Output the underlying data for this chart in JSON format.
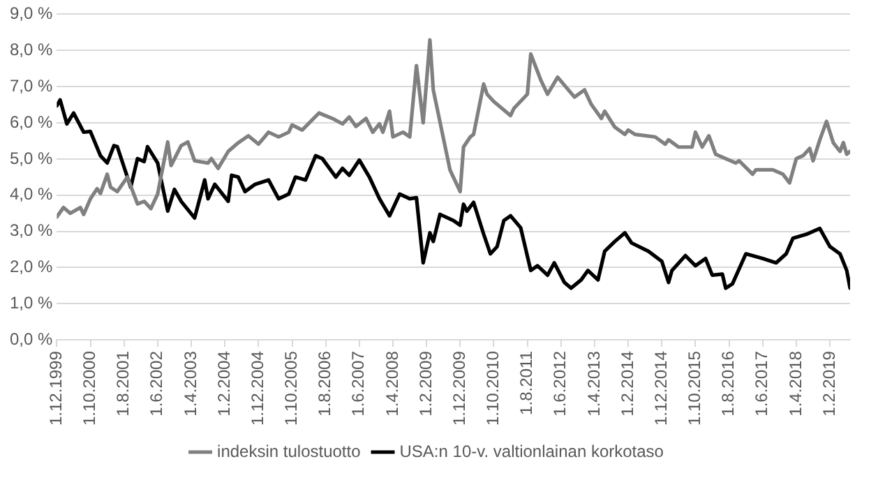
{
  "chart_data": {
    "type": "line",
    "xlim": [
      "1999-12",
      "2019-08"
    ],
    "xticks": [
      {
        "value": "1999-12",
        "label": "1.12.1999"
      },
      {
        "value": "2000-10",
        "label": "1.10.2000"
      },
      {
        "value": "2001-08",
        "label": "1.8.2001"
      },
      {
        "value": "2002-06",
        "label": "1.6.2002"
      },
      {
        "value": "2003-04",
        "label": "1.4.2003"
      },
      {
        "value": "2004-02",
        "label": "1.2.2004"
      },
      {
        "value": "2004-12",
        "label": "1.12.2004"
      },
      {
        "value": "2005-10",
        "label": "1.10.2005"
      },
      {
        "value": "2006-08",
        "label": "1.8.2006"
      },
      {
        "value": "2007-06",
        "label": "1.6.2007"
      },
      {
        "value": "2008-04",
        "label": "1.4.2008"
      },
      {
        "value": "2009-02",
        "label": "1.2.2009"
      },
      {
        "value": "2009-12",
        "label": "1.12.2009"
      },
      {
        "value": "2010-10",
        "label": "1.10.2010"
      },
      {
        "value": "2011-08",
        "label": "1.8.2011"
      },
      {
        "value": "2012-06",
        "label": "1.6.2012"
      },
      {
        "value": "2013-04",
        "label": "1.4.2013"
      },
      {
        "value": "2014-02",
        "label": "1.2.2014"
      },
      {
        "value": "2014-12",
        "label": "1.12.2014"
      },
      {
        "value": "2015-10",
        "label": "1.10.2015"
      },
      {
        "value": "2016-08",
        "label": "1.8.2016"
      },
      {
        "value": "2017-06",
        "label": "1.6.2017"
      },
      {
        "value": "2018-04",
        "label": "1.4.2018"
      },
      {
        "value": "2019-02",
        "label": "1.2.2019"
      }
    ],
    "ylim": [
      0,
      9
    ],
    "yticks": [
      {
        "value": 0,
        "label": "0,0 %"
      },
      {
        "value": 1,
        "label": "1,0 %"
      },
      {
        "value": 2,
        "label": "2,0 %"
      },
      {
        "value": 3,
        "label": "3,0 %"
      },
      {
        "value": 4,
        "label": "4,0 %"
      },
      {
        "value": 5,
        "label": "5,0 %"
      },
      {
        "value": 6,
        "label": "6,0 %"
      },
      {
        "value": 7,
        "label": "7,0 %"
      },
      {
        "value": 8,
        "label": "8,0 %"
      },
      {
        "value": 9,
        "label": "9,0 %"
      }
    ],
    "grid": "y",
    "legend": "bottom",
    "marker": "none",
    "line_style": "solid",
    "series": [
      {
        "name": "indeksin tulostuotto",
        "color": "#808080",
        "x": [
          "1999-12",
          "2000-02",
          "2000-04",
          "2000-07",
          "2000-08",
          "2000-10",
          "2000-12",
          "2001-01",
          "2001-03",
          "2001-04",
          "2001-06",
          "2001-09",
          "2001-12",
          "2002-02",
          "2002-04",
          "2002-06",
          "2002-09",
          "2002-10",
          "2003-01",
          "2003-03",
          "2003-05",
          "2003-09",
          "2003-10",
          "2003-12",
          "2004-03",
          "2004-06",
          "2004-09",
          "2004-12",
          "2005-03",
          "2005-06",
          "2005-09",
          "2005-10",
          "2006-01",
          "2006-06",
          "2006-10",
          "2007-01",
          "2007-03",
          "2007-05",
          "2007-08",
          "2007-10",
          "2007-12",
          "2008-01",
          "2008-03",
          "2008-04",
          "2008-07",
          "2008-09",
          "2008-11",
          "2009-01",
          "2009-03",
          "2009-04",
          "2009-09",
          "2009-12",
          "2010-01",
          "2010-03",
          "2010-04",
          "2010-07",
          "2010-08",
          "2010-10",
          "2011-03",
          "2011-04",
          "2011-08",
          "2011-09",
          "2011-12",
          "2012-02",
          "2012-05",
          "2012-10",
          "2013-01",
          "2013-03",
          "2013-06",
          "2013-07",
          "2013-10",
          "2014-01",
          "2014-02",
          "2014-04",
          "2014-10",
          "2015-01",
          "2015-02",
          "2015-05",
          "2015-09",
          "2015-10",
          "2015-12",
          "2016-02",
          "2016-04",
          "2016-10",
          "2016-11",
          "2017-03",
          "2017-04",
          "2017-09",
          "2017-12",
          "2018-02",
          "2018-04",
          "2018-06",
          "2018-08",
          "2018-09",
          "2018-11",
          "2019-01",
          "2019-03",
          "2019-05",
          "2019-06",
          "2019-07",
          "2019-08"
        ],
        "values": [
          3.4,
          3.66,
          3.5,
          3.66,
          3.47,
          3.9,
          4.18,
          4.05,
          4.58,
          4.22,
          4.1,
          4.5,
          3.76,
          3.83,
          3.63,
          4.03,
          5.47,
          4.82,
          5.37,
          5.47,
          4.95,
          4.89,
          5.01,
          4.74,
          5.21,
          5.45,
          5.64,
          5.41,
          5.74,
          5.61,
          5.74,
          5.94,
          5.8,
          6.27,
          6.12,
          5.97,
          6.16,
          5.9,
          6.12,
          5.74,
          5.97,
          5.74,
          6.32,
          5.61,
          5.74,
          5.61,
          7.58,
          6.0,
          8.29,
          6.91,
          4.69,
          4.1,
          5.33,
          5.61,
          5.68,
          7.07,
          6.79,
          6.59,
          6.2,
          6.4,
          6.79,
          7.9,
          7.18,
          6.79,
          7.26,
          6.71,
          6.91,
          6.51,
          6.12,
          6.32,
          5.88,
          5.68,
          5.8,
          5.68,
          5.61,
          5.41,
          5.53,
          5.33,
          5.33,
          5.74,
          5.33,
          5.64,
          5.13,
          4.89,
          4.95,
          4.58,
          4.7,
          4.7,
          4.58,
          4.34,
          5.01,
          5.09,
          5.29,
          4.95,
          5.53,
          6.04,
          5.45,
          5.21,
          5.45,
          5.13,
          5.21
        ]
      },
      {
        "name": "USA:n 10-v. valtionlainan korkotaso",
        "color": "#000000",
        "x": [
          "1999-12",
          "2000-01",
          "2000-03",
          "2000-05",
          "2000-08",
          "2000-10",
          "2001-01",
          "2001-03",
          "2001-05",
          "2001-06",
          "2001-10",
          "2001-12",
          "2002-02",
          "2002-03",
          "2002-06",
          "2002-09",
          "2002-11",
          "2003-01",
          "2003-05",
          "2003-08",
          "2003-09",
          "2003-11",
          "2004-03",
          "2004-04",
          "2004-06",
          "2004-08",
          "2004-11",
          "2005-03",
          "2005-06",
          "2005-09",
          "2005-11",
          "2006-02",
          "2006-05",
          "2006-07",
          "2006-11",
          "2007-01",
          "2007-03",
          "2007-06",
          "2007-09",
          "2007-12",
          "2008-03",
          "2008-06",
          "2008-09",
          "2008-11",
          "2009-01",
          "2009-03",
          "2009-04",
          "2009-06",
          "2009-10",
          "2009-12",
          "2010-01",
          "2010-02",
          "2010-04",
          "2010-07",
          "2010-09",
          "2010-11",
          "2011-01",
          "2011-03",
          "2011-06",
          "2011-09",
          "2011-11",
          "2012-02",
          "2012-04",
          "2012-07",
          "2012-09",
          "2012-12",
          "2013-02",
          "2013-05",
          "2013-07",
          "2013-10",
          "2014-01",
          "2014-03",
          "2014-08",
          "2014-12",
          "2015-02",
          "2015-03",
          "2015-07",
          "2015-10",
          "2016-01",
          "2016-03",
          "2016-06",
          "2016-07",
          "2016-09",
          "2017-01",
          "2017-06",
          "2017-10",
          "2018-01",
          "2018-03",
          "2018-07",
          "2018-11",
          "2019-02",
          "2019-05",
          "2019-07",
          "2019-08"
        ],
        "values": [
          6.47,
          6.63,
          5.97,
          6.27,
          5.74,
          5.76,
          5.09,
          4.89,
          5.37,
          5.34,
          4.22,
          5.01,
          4.93,
          5.34,
          4.89,
          3.56,
          4.16,
          3.83,
          3.37,
          4.42,
          3.9,
          4.3,
          3.83,
          4.55,
          4.5,
          4.1,
          4.3,
          4.42,
          3.9,
          4.03,
          4.5,
          4.42,
          5.09,
          5.01,
          4.5,
          4.74,
          4.55,
          4.97,
          4.5,
          3.9,
          3.43,
          4.03,
          3.9,
          3.93,
          2.13,
          2.96,
          2.72,
          3.47,
          3.3,
          3.17,
          3.75,
          3.56,
          3.8,
          2.92,
          2.38,
          2.58,
          3.3,
          3.43,
          3.1,
          1.92,
          2.05,
          1.79,
          2.13,
          1.59,
          1.43,
          1.66,
          1.92,
          1.66,
          2.45,
          2.72,
          2.96,
          2.68,
          2.45,
          2.17,
          1.59,
          1.92,
          2.33,
          2.05,
          2.25,
          1.79,
          1.82,
          1.43,
          1.55,
          2.38,
          2.25,
          2.13,
          2.38,
          2.81,
          2.92,
          3.08,
          2.58,
          2.38,
          1.92,
          1.43
        ]
      }
    ]
  }
}
